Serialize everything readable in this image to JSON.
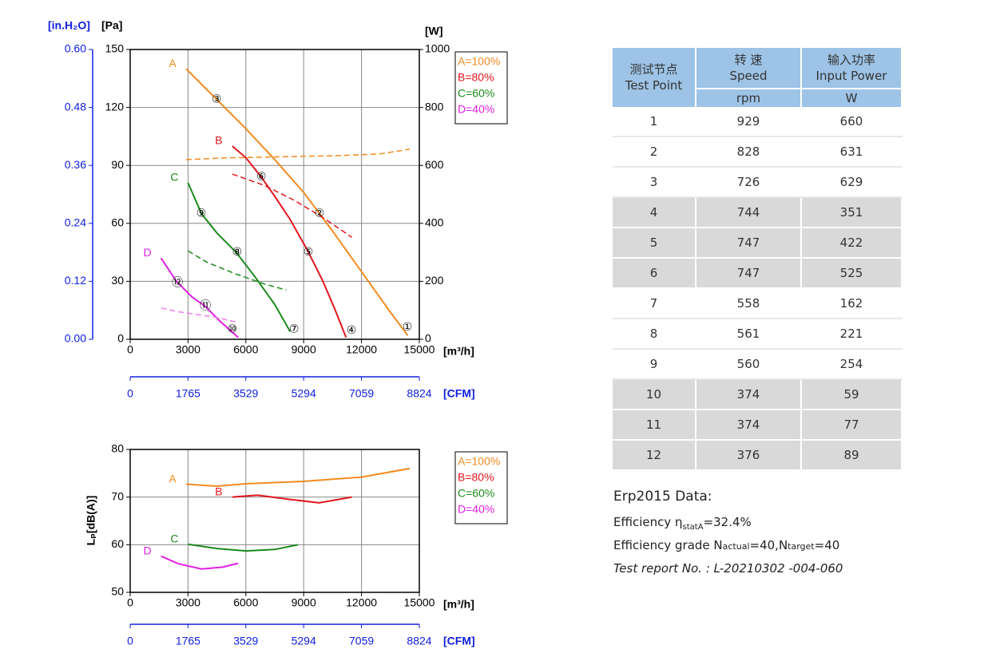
{
  "chart_data": [
    {
      "type": "line",
      "xlabel": "[m³/h]",
      "x2label": "[CFM]",
      "ylabel": "[Pa]",
      "y2label": "[W]",
      "y3label": "[in.H₂O]",
      "xlim": [
        0,
        15000
      ],
      "xticks": [
        0,
        3000,
        6000,
        9000,
        12000,
        15000
      ],
      "x2lim": [
        0,
        8824
      ],
      "x2ticks": [
        0,
        1765,
        3529,
        5294,
        7059,
        8824
      ],
      "ylim": [
        0,
        150
      ],
      "yticks": [
        0,
        30,
        60,
        90,
        120,
        150
      ],
      "y2lim": [
        0,
        1000
      ],
      "y2ticks": [
        0,
        200,
        400,
        600,
        800,
        1000
      ],
      "y3lim": [
        0,
        0.6
      ],
      "y3ticks": [
        {
          "value": 0,
          "label": "0.00"
        },
        0.12,
        0.24,
        0.36,
        0.48,
        {
          "value": 0.6,
          "label": "0.60"
        }
      ],
      "grid": true,
      "series": [
        {
          "name": "A=100%",
          "label": "A",
          "color": "#f28a1e",
          "x": [
            2900,
            4500,
            6000,
            7500,
            9000,
            10500,
            12000,
            13500,
            14400
          ],
          "values": [
            140,
            124,
            109,
            93,
            76,
            56,
            35,
            14,
            2
          ]
        },
        {
          "name": "B=80%",
          "label": "B",
          "color": "#e3161e",
          "x": [
            5300,
            6000,
            6800,
            7500,
            8300,
            9200,
            10000,
            10600,
            11200
          ],
          "values": [
            100,
            94,
            84,
            74,
            62,
            46,
            30,
            16,
            1
          ]
        },
        {
          "name": "C=60%",
          "label": "C",
          "color": "#1b8a1b",
          "x": [
            3000,
            3700,
            4500,
            5500,
            6500,
            7500,
            8300
          ],
          "values": [
            81,
            65,
            55,
            45,
            32,
            18,
            4
          ]
        },
        {
          "name": "D=40%",
          "label": "D",
          "color": "#e020e0",
          "x": [
            1600,
            2400,
            3200,
            3900,
            4700,
            5600
          ],
          "values": [
            42,
            30,
            22,
            17,
            9,
            1
          ]
        },
        {
          "axis": "y2",
          "dashed": true,
          "color": "#f28a1e",
          "x": [
            2900,
            5000,
            8000,
            11000,
            13000,
            14500
          ],
          "values": [
            620,
            626,
            630,
            634,
            640,
            656
          ]
        },
        {
          "axis": "y2",
          "dashed": true,
          "color": "#e3161e",
          "x": [
            5300,
            7000,
            8500,
            10000,
            11500
          ],
          "values": [
            570,
            530,
            480,
            420,
            352
          ]
        },
        {
          "axis": "y2",
          "dashed": true,
          "color": "#1b8a1b",
          "x": [
            3000,
            4000,
            5500,
            7000,
            8100
          ],
          "values": [
            305,
            265,
            225,
            190,
            170
          ]
        },
        {
          "axis": "y2",
          "dashed": true,
          "color": "#f080f0",
          "x": [
            1600,
            2500,
            3500,
            4500,
            5600
          ],
          "values": [
            108,
            95,
            85,
            75,
            58
          ]
        }
      ],
      "points": [
        {
          "label": "①",
          "x": 14380,
          "y": 6
        },
        {
          "label": "②",
          "x": 9820,
          "y": 65
        },
        {
          "label": "③",
          "x": 4480,
          "y": 124
        },
        {
          "label": "④",
          "x": 11480,
          "y": 4.5
        },
        {
          "label": "⑤",
          "x": 9240,
          "y": 45
        },
        {
          "label": "⑥",
          "x": 6800,
          "y": 84
        },
        {
          "label": "⑦",
          "x": 8500,
          "y": 5
        },
        {
          "label": "⑧",
          "x": 5550,
          "y": 45
        },
        {
          "label": "⑨",
          "x": 3690,
          "y": 65
        },
        {
          "label": "⑩",
          "x": 5300,
          "y": 5
        },
        {
          "label": "⑪",
          "x": 3900,
          "y": 17
        },
        {
          "label": "⑫",
          "x": 2450,
          "y": 29
        }
      ]
    },
    {
      "type": "line",
      "xlabel": "[m³/h]",
      "x2label": "[CFM]",
      "ylabel": "Lₚ[dB(A)]",
      "xlim": [
        0,
        15000
      ],
      "xticks": [
        0,
        3000,
        6000,
        9000,
        12000,
        15000
      ],
      "x2lim": [
        0,
        8824
      ],
      "x2ticks": [
        0,
        1765,
        3529,
        5294,
        7059,
        8824
      ],
      "ylim": [
        50,
        80
      ],
      "yticks": [
        50,
        60,
        70,
        80
      ],
      "grid": true,
      "series": [
        {
          "name": "A=100%",
          "label": "A",
          "color": "#f28a1e",
          "x": [
            2900,
            4500,
            6000,
            9000,
            12000,
            14500
          ],
          "values": [
            72.7,
            72.3,
            72.8,
            73.3,
            74.2,
            76.0
          ]
        },
        {
          "name": "B=80%",
          "label": "B",
          "color": "#e3161e",
          "x": [
            5300,
            6600,
            8300,
            9800,
            11500
          ],
          "values": [
            70.0,
            70.4,
            69.5,
            68.8,
            70.0
          ]
        },
        {
          "name": "C=60%",
          "label": "C",
          "color": "#1b8a1b",
          "x": [
            3000,
            4500,
            6000,
            7500,
            8700
          ],
          "values": [
            60.1,
            59.2,
            58.7,
            59.0,
            60.0
          ]
        },
        {
          "name": "D=40%",
          "label": "D",
          "color": "#e020e0",
          "x": [
            1600,
            2500,
            3700,
            4800,
            5600
          ],
          "values": [
            57.6,
            56.0,
            54.9,
            55.3,
            56.1
          ]
        }
      ]
    }
  ],
  "table": {
    "header": [
      [
        "测试节点",
        "Test Point"
      ],
      [
        "转 速",
        "Speed"
      ],
      [
        "输入功率",
        "Input Power"
      ]
    ],
    "units": [
      "rpm",
      "W"
    ],
    "rows": [
      [
        1,
        929,
        660
      ],
      [
        2,
        828,
        631
      ],
      [
        3,
        726,
        629
      ],
      [
        4,
        744,
        351
      ],
      [
        5,
        747,
        422
      ],
      [
        6,
        747,
        525
      ],
      [
        7,
        558,
        162
      ],
      [
        8,
        561,
        221
      ],
      [
        9,
        560,
        254
      ],
      [
        10,
        374,
        59
      ],
      [
        11,
        374,
        77
      ],
      [
        12,
        376,
        89
      ]
    ]
  },
  "erp": {
    "title": "Erp2015  Data:",
    "efficiency": [
      {
        "text": "Efficiency η"
      },
      {
        "text": "statA",
        "sub": true
      },
      {
        "text": "=32.4%"
      }
    ],
    "grade": [
      {
        "text": "Efficiency grade  N"
      },
      {
        "text": "actual",
        "small": true
      },
      {
        "text": "=40,N"
      },
      {
        "text": "target",
        "small": true
      },
      {
        "text": "=40"
      }
    ],
    "report": "Test report No. : L-20210302 -004-060"
  }
}
